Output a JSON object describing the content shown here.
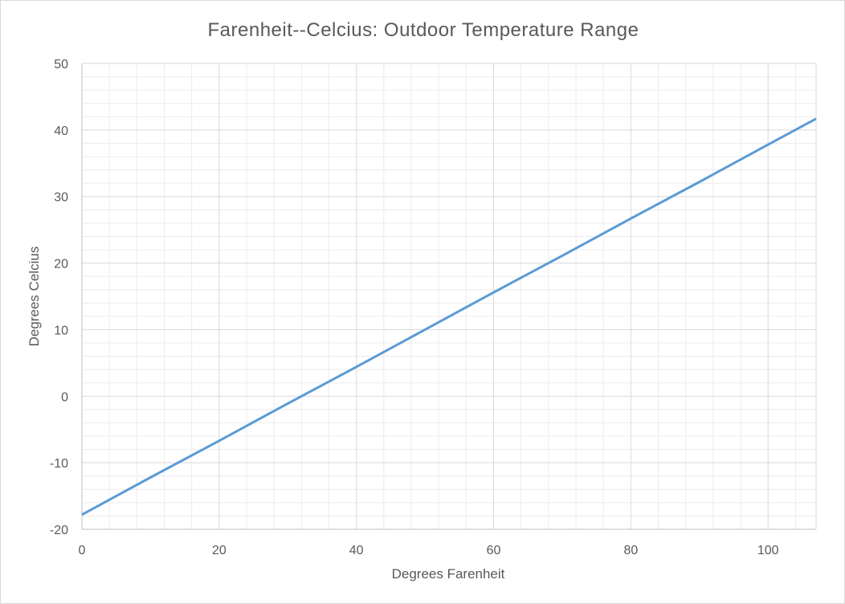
{
  "chart_data": {
    "type": "line",
    "title": "Farenheit--Celcius: Outdoor Temperature Range",
    "xlabel": "Degrees Farenheit",
    "ylabel": "Degrees Celcius",
    "xlim": [
      0,
      107
    ],
    "ylim": [
      -20,
      50
    ],
    "x_ticks": [
      0,
      20,
      40,
      60,
      80,
      100
    ],
    "y_ticks": [
      -20,
      -10,
      0,
      10,
      20,
      30,
      40,
      50
    ],
    "x_minor_step": 4,
    "y_minor_step": 2,
    "grid": true,
    "legend": "none",
    "series": [
      {
        "color": "#5b9bd5",
        "x": [
          0,
          10,
          20,
          30,
          32,
          40,
          50,
          60,
          70,
          80,
          90,
          100,
          107
        ],
        "y": [
          -17.8,
          -12.2,
          -6.7,
          -1.1,
          0,
          4.4,
          10,
          15.6,
          21.1,
          26.7,
          32.2,
          37.8,
          41.7
        ]
      }
    ]
  }
}
